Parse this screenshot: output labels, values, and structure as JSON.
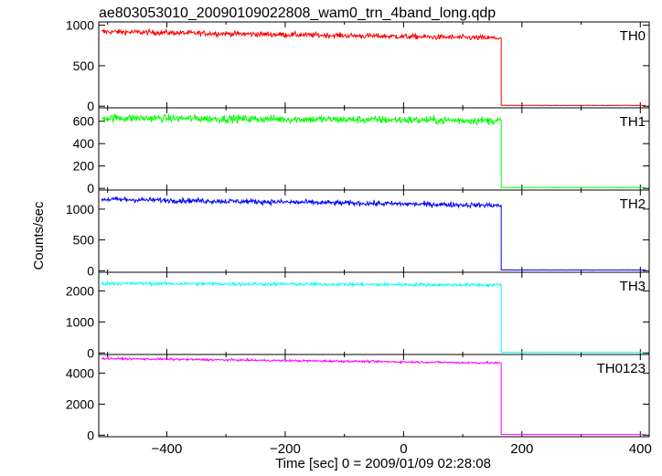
{
  "title": "ae803053010_20090109022808_wam0_trn_4band_long.qdp",
  "chart_data": {
    "type": "line",
    "title": "ae803053010_20090109022808_wam0_trn_4band_long.qdp",
    "xlabel": "Time [sec] 0 = 2009/01/09 02:28:08",
    "ylabel": "Counts/sec",
    "xlim": [
      -515,
      415
    ],
    "xticks": [
      -400,
      -200,
      0,
      200,
      400
    ],
    "xtick_labels": [
      "−400",
      "−200",
      "0",
      "200",
      "400"
    ],
    "grid": false,
    "legend": "none",
    "drop_time": 165,
    "x_start": -510,
    "x_end": 410,
    "panels": [
      {
        "label": "TH0",
        "color": "#ff0000",
        "ylim": [
          -20,
          1040
        ],
        "yticks": [
          0,
          500,
          1000
        ],
        "level_start": 920,
        "level_end": 840,
        "noise": 28,
        "level_after": 10
      },
      {
        "label": "TH1",
        "color": "#00ff00",
        "ylim": [
          -15,
          720
        ],
        "yticks": [
          0,
          200,
          400,
          600
        ],
        "level_start": 630,
        "level_end": 605,
        "noise": 30,
        "level_after": 8
      },
      {
        "label": "TH2",
        "color": "#0000ff",
        "ylim": [
          -25,
          1310
        ],
        "yticks": [
          0,
          500,
          1000
        ],
        "level_start": 1160,
        "level_end": 1060,
        "noise": 35,
        "level_after": 12
      },
      {
        "label": "TH3",
        "color": "#00ffff",
        "ylim": [
          -50,
          2600
        ],
        "yticks": [
          0,
          1000,
          2000
        ],
        "level_start": 2240,
        "level_end": 2190,
        "noise": 45,
        "level_after": 20
      },
      {
        "label": "TH0123",
        "color": "#ff00ff",
        "ylim": [
          -100,
          5200
        ],
        "yticks": [
          0,
          2000,
          4000
        ],
        "level_start": 4940,
        "level_end": 4650,
        "noise": 55,
        "level_after": 40
      }
    ]
  }
}
